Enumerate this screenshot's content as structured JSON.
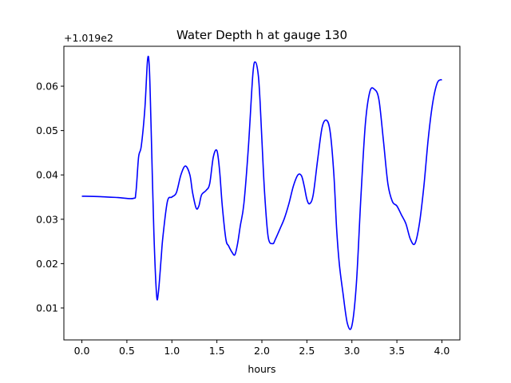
{
  "chart_data": {
    "type": "line",
    "title": "Water Depth h at gauge 130",
    "xlabel": "hours",
    "ylabel": "",
    "y_offset_label": "+1.019e2",
    "xlim": [
      -0.2,
      4.2
    ],
    "ylim": [
      0.0028,
      0.069
    ],
    "x_ticks": [
      0.0,
      0.5,
      1.0,
      1.5,
      2.0,
      2.5,
      3.0,
      3.5,
      4.0
    ],
    "x_tick_labels": [
      "0.0",
      "0.5",
      "1.0",
      "1.5",
      "2.0",
      "2.5",
      "3.0",
      "3.5",
      "4.0"
    ],
    "y_ticks": [
      0.01,
      0.02,
      0.03,
      0.04,
      0.05,
      0.06
    ],
    "y_tick_labels": [
      "0.01",
      "0.02",
      "0.03",
      "0.04",
      "0.05",
      "0.06"
    ],
    "grid": false,
    "series": [
      {
        "color": "#0000ff",
        "x": [
          0.0,
          0.2,
          0.4,
          0.57,
          0.6,
          0.63,
          0.66,
          0.7,
          0.73,
          0.75,
          0.77,
          0.8,
          0.83,
          0.85,
          0.88,
          0.9,
          0.95,
          1.0,
          1.05,
          1.1,
          1.15,
          1.2,
          1.23,
          1.27,
          1.3,
          1.33,
          1.38,
          1.42,
          1.46,
          1.5,
          1.53,
          1.56,
          1.6,
          1.63,
          1.67,
          1.7,
          1.73,
          1.76,
          1.8,
          1.85,
          1.9,
          1.93,
          1.96,
          1.98,
          2.0,
          2.03,
          2.07,
          2.12,
          2.15,
          2.2,
          2.25,
          2.3,
          2.35,
          2.4,
          2.44,
          2.47,
          2.5,
          2.53,
          2.57,
          2.62,
          2.67,
          2.72,
          2.76,
          2.8,
          2.83,
          2.86,
          2.9,
          2.95,
          3.0,
          3.05,
          3.1,
          3.15,
          3.2,
          3.25,
          3.3,
          3.35,
          3.4,
          3.45,
          3.5,
          3.55,
          3.6,
          3.65,
          3.7,
          3.75,
          3.8,
          3.85,
          3.9,
          3.95,
          4.0
        ],
        "y": [
          0.0352,
          0.0351,
          0.0349,
          0.0347,
          0.036,
          0.044,
          0.0465,
          0.055,
          0.066,
          0.064,
          0.05,
          0.027,
          0.013,
          0.0135,
          0.021,
          0.026,
          0.034,
          0.035,
          0.036,
          0.04,
          0.042,
          0.04,
          0.036,
          0.0325,
          0.033,
          0.0355,
          0.0365,
          0.038,
          0.044,
          0.0455,
          0.041,
          0.033,
          0.0255,
          0.024,
          0.0225,
          0.022,
          0.0245,
          0.0285,
          0.0335,
          0.0462,
          0.0628,
          0.0654,
          0.0625,
          0.0565,
          0.048,
          0.036,
          0.026,
          0.0245,
          0.0255,
          0.0278,
          0.0302,
          0.0335,
          0.0375,
          0.04,
          0.0398,
          0.0375,
          0.0345,
          0.0335,
          0.0355,
          0.0435,
          0.0508,
          0.0523,
          0.0495,
          0.04,
          0.028,
          0.02,
          0.0135,
          0.0065,
          0.006,
          0.0155,
          0.035,
          0.0516,
          0.0588,
          0.0593,
          0.057,
          0.0478,
          0.038,
          0.034,
          0.033,
          0.031,
          0.029,
          0.0255,
          0.0245,
          0.029,
          0.0375,
          0.0485,
          0.0565,
          0.0608,
          0.0615
        ]
      }
    ]
  }
}
